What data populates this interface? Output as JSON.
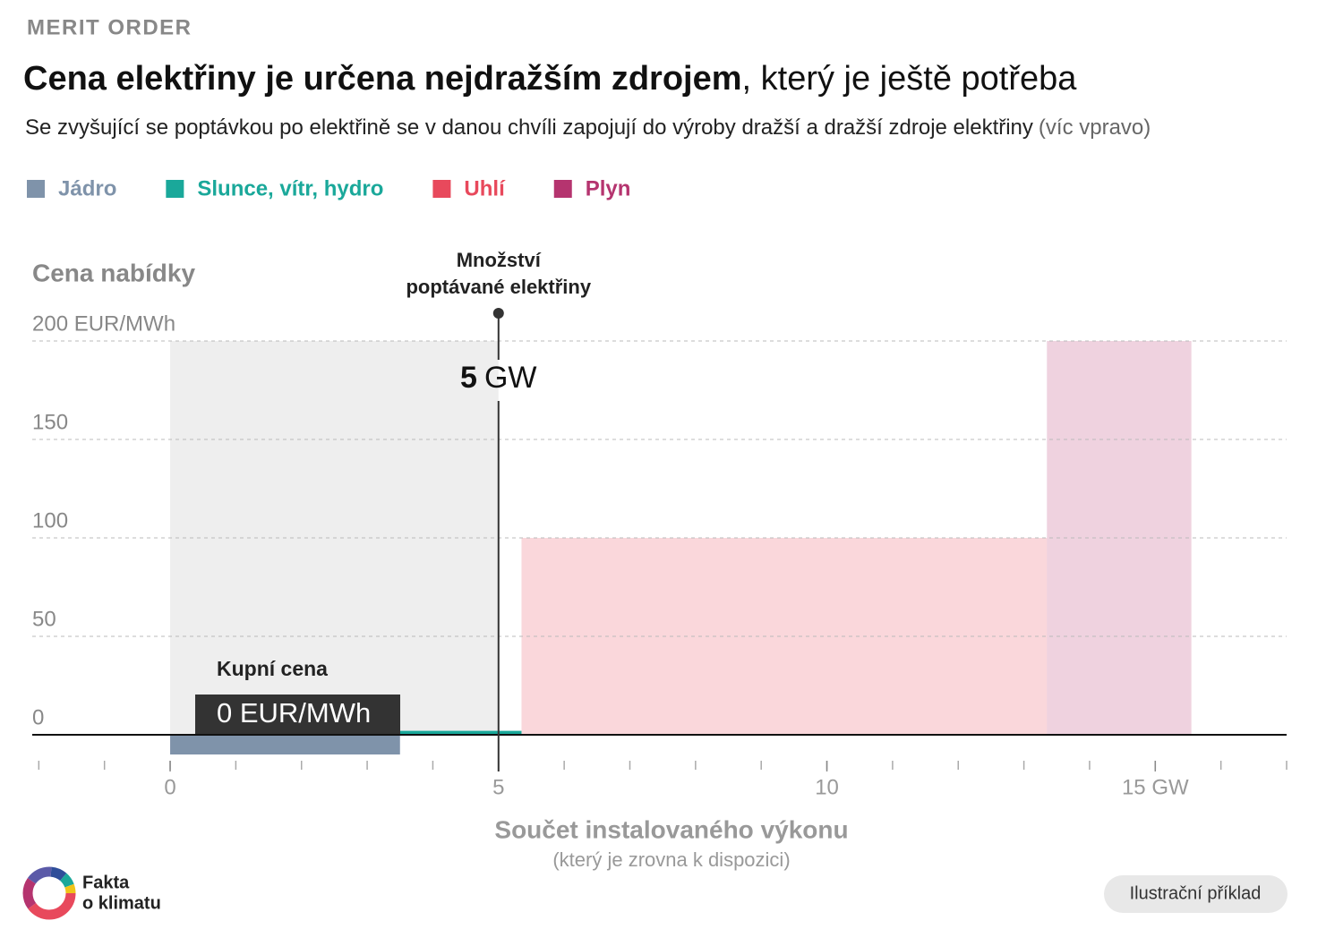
{
  "header": {
    "kicker": "MERIT ORDER",
    "title_bold": "Cena elektřiny je určena nejdražším zdrojem",
    "title_rest": ", který je ještě potřeba",
    "subtitle": "Se zvyšující se poptávkou po elektřině se v danou chvíli zapojují do výroby dražší a dražší zdroje elektřiny",
    "subtitle_note": "(víc vpravo)"
  },
  "chart_data": {
    "type": "merit-order",
    "y_label": "Cena nabídky",
    "x_label": "Součet instalovaného výkonu",
    "x_sublabel": "(který je zrovna k dispozici)",
    "xlim": [
      -2.1,
      17
    ],
    "ylim": [
      -10,
      200
    ],
    "xticks": [
      0,
      5,
      10,
      {
        "value": 15,
        "label": "15 GW"
      }
    ],
    "xminorticks": [
      -2,
      -1,
      0,
      1,
      2,
      3,
      4,
      5,
      6,
      7,
      8,
      9,
      10,
      11,
      12,
      13,
      14,
      15,
      16,
      17
    ],
    "yticks": [
      0,
      50,
      100,
      150,
      {
        "value": 200,
        "label": "200 EUR/MWh"
      }
    ],
    "grid": true,
    "series": [
      {
        "name": "Jádro",
        "color": "#7f93aa",
        "x0": 0,
        "x1": 3.5,
        "value": -10
      },
      {
        "name": "Slunce, vítr, hydro",
        "color": "#1aa89a",
        "x0": 3.5,
        "x1": 5.35,
        "value": 2
      },
      {
        "name": "Uhlí",
        "color": "#e8495c",
        "x0": 5.35,
        "x1": 13.35,
        "value": 100
      },
      {
        "name": "Plyn",
        "color": "#b5346f",
        "x0": 13.35,
        "x1": 15.55,
        "value": 200
      }
    ],
    "demand": {
      "label_lines": [
        "Množství",
        "poptávané elektřiny"
      ],
      "value": 5,
      "unit": "GW"
    },
    "price": {
      "label": "Kupní cena",
      "value": 0,
      "value_label": "0 EUR/MWh"
    }
  },
  "footer": {
    "logo_lines": [
      "Fakta",
      "o klimatu"
    ],
    "badge": "Ilustrační příklad"
  }
}
